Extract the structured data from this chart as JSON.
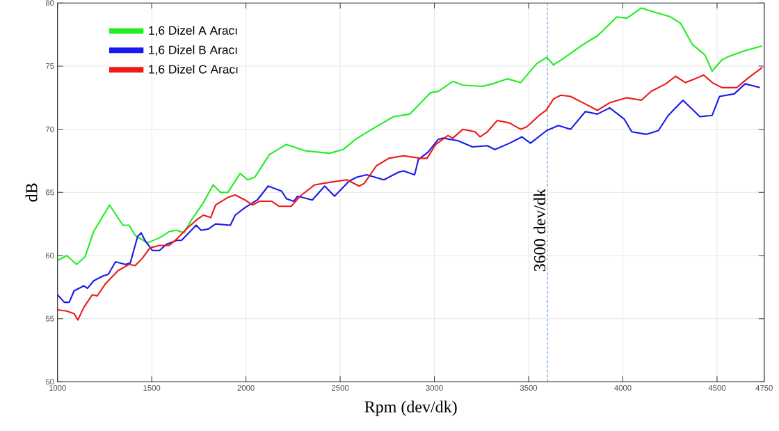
{
  "chart_data": {
    "type": "line",
    "xlabel": "Rpm (dev/dk)",
    "ylabel": "dB",
    "xlim": [
      1000,
      4750
    ],
    "ylim": [
      50,
      80
    ],
    "xticks": [
      1000,
      1500,
      2000,
      2500,
      3000,
      3500,
      4000,
      4500,
      4750
    ],
    "yticks": [
      50,
      55,
      60,
      65,
      70,
      75,
      80
    ],
    "grid": true,
    "legend": "top left",
    "marker": "none",
    "line_style": "solid",
    "ref_lines": [
      {
        "axis": "x",
        "value": 3600,
        "label": "3600 dev/dk",
        "color": "#5b9bd5",
        "line_style": "dashed"
      }
    ],
    "series": [
      {
        "name": "1,6 Dizel A Aracı",
        "color": "#22ee22",
        "x": [
          1000,
          1049,
          1101,
          1146,
          1192,
          1276,
          1347,
          1380,
          1412,
          1477,
          1541,
          1593,
          1632,
          1671,
          1710,
          1775,
          1826,
          1865,
          1904,
          1969,
          2009,
          2047,
          2125,
          2215,
          2313,
          2444,
          2516,
          2581,
          2679,
          2784,
          2869,
          2980,
          3020,
          3098,
          3151,
          3255,
          3308,
          3386,
          3458,
          3543,
          3596,
          3632,
          3684,
          3788,
          3865,
          3969,
          4021,
          4098,
          4163,
          4254,
          4306,
          4370,
          4435,
          4474,
          4526,
          4552,
          4642,
          4739
        ],
        "values": [
          59.6,
          60.0,
          59.3,
          59.9,
          61.9,
          64.0,
          62.4,
          62.4,
          61.6,
          61.0,
          61.4,
          61.9,
          62.0,
          61.8,
          62.8,
          64.2,
          65.6,
          65.0,
          65.0,
          66.5,
          66.0,
          66.2,
          68.0,
          68.8,
          68.3,
          68.1,
          68.4,
          69.2,
          70.1,
          71.0,
          71.2,
          72.9,
          73.0,
          73.8,
          73.5,
          73.4,
          73.6,
          74.0,
          73.7,
          75.2,
          75.7,
          75.1,
          75.6,
          76.7,
          77.4,
          78.9,
          78.8,
          79.6,
          79.3,
          78.9,
          78.4,
          76.7,
          75.9,
          74.6,
          75.5,
          75.7,
          76.2,
          76.6
        ]
      },
      {
        "name": "1,6 Dizel B Aracı",
        "color": "#1a1aee",
        "x": [
          1000,
          1036,
          1062,
          1088,
          1140,
          1159,
          1192,
          1244,
          1269,
          1308,
          1360,
          1386,
          1425,
          1444,
          1464,
          1503,
          1541,
          1580,
          1632,
          1658,
          1710,
          1736,
          1762,
          1801,
          1839,
          1917,
          1943,
          1995,
          2060,
          2118,
          2189,
          2215,
          2254,
          2274,
          2352,
          2418,
          2470,
          2548,
          2588,
          2640,
          2732,
          2810,
          2836,
          2895,
          2915,
          2967,
          3020,
          3046,
          3124,
          3203,
          3281,
          3321,
          3399,
          3465,
          3510,
          3596,
          3658,
          3723,
          3801,
          3865,
          3930,
          4008,
          4047,
          4124,
          4189,
          4241,
          4319,
          4409,
          4474,
          4513,
          4591,
          4649,
          4727
        ],
        "values": [
          56.9,
          56.3,
          56.3,
          57.2,
          57.6,
          57.4,
          58.0,
          58.4,
          58.5,
          59.5,
          59.3,
          59.4,
          61.5,
          61.8,
          61.2,
          60.4,
          60.4,
          60.9,
          61.2,
          61.2,
          62.0,
          62.4,
          62.0,
          62.1,
          62.5,
          62.4,
          63.2,
          63.8,
          64.4,
          65.5,
          65.1,
          64.5,
          64.3,
          64.7,
          64.4,
          65.5,
          64.7,
          65.9,
          66.2,
          66.4,
          66.0,
          66.6,
          66.7,
          66.4,
          67.6,
          68.2,
          69.2,
          69.3,
          69.1,
          68.6,
          68.7,
          68.4,
          68.9,
          69.4,
          68.9,
          69.9,
          70.3,
          70.0,
          71.4,
          71.2,
          71.7,
          70.8,
          69.8,
          69.6,
          69.9,
          71.1,
          72.3,
          71.0,
          71.1,
          72.6,
          72.8,
          73.6,
          73.3
        ]
      },
      {
        "name": "1,6 Dizel C Aracı",
        "color": "#ee1a1a",
        "x": [
          1000,
          1049,
          1088,
          1108,
          1140,
          1185,
          1211,
          1256,
          1321,
          1380,
          1412,
          1451,
          1490,
          1541,
          1593,
          1632,
          1684,
          1736,
          1775,
          1813,
          1839,
          1904,
          1943,
          1995,
          2034,
          2073,
          2137,
          2176,
          2241,
          2287,
          2365,
          2444,
          2535,
          2601,
          2627,
          2692,
          2758,
          2836,
          2928,
          2961,
          3007,
          3072,
          3098,
          3151,
          3216,
          3242,
          3281,
          3334,
          3399,
          3458,
          3491,
          3556,
          3593,
          3632,
          3671,
          3723,
          3801,
          3865,
          3930,
          4021,
          4098,
          4150,
          4228,
          4280,
          4332,
          4383,
          4429,
          4474,
          4526,
          4604,
          4668,
          4740
        ],
        "values": [
          55.7,
          55.6,
          55.4,
          54.9,
          55.9,
          56.9,
          56.8,
          57.8,
          58.8,
          59.3,
          59.2,
          59.8,
          60.6,
          60.8,
          60.8,
          61.3,
          62.1,
          62.8,
          63.2,
          63.0,
          64.0,
          64.6,
          64.8,
          64.4,
          64.0,
          64.3,
          64.3,
          63.9,
          63.9,
          64.7,
          65.6,
          65.8,
          66.0,
          65.5,
          65.7,
          67.1,
          67.7,
          67.9,
          67.7,
          67.7,
          68.8,
          69.5,
          69.3,
          70.0,
          69.8,
          69.4,
          69.8,
          70.7,
          70.5,
          70.0,
          70.2,
          71.1,
          71.5,
          72.4,
          72.7,
          72.6,
          72.0,
          71.5,
          72.1,
          72.5,
          72.3,
          73.0,
          73.6,
          74.2,
          73.7,
          74.0,
          74.3,
          73.7,
          73.3,
          73.3,
          74.1,
          74.9
        ]
      }
    ]
  }
}
